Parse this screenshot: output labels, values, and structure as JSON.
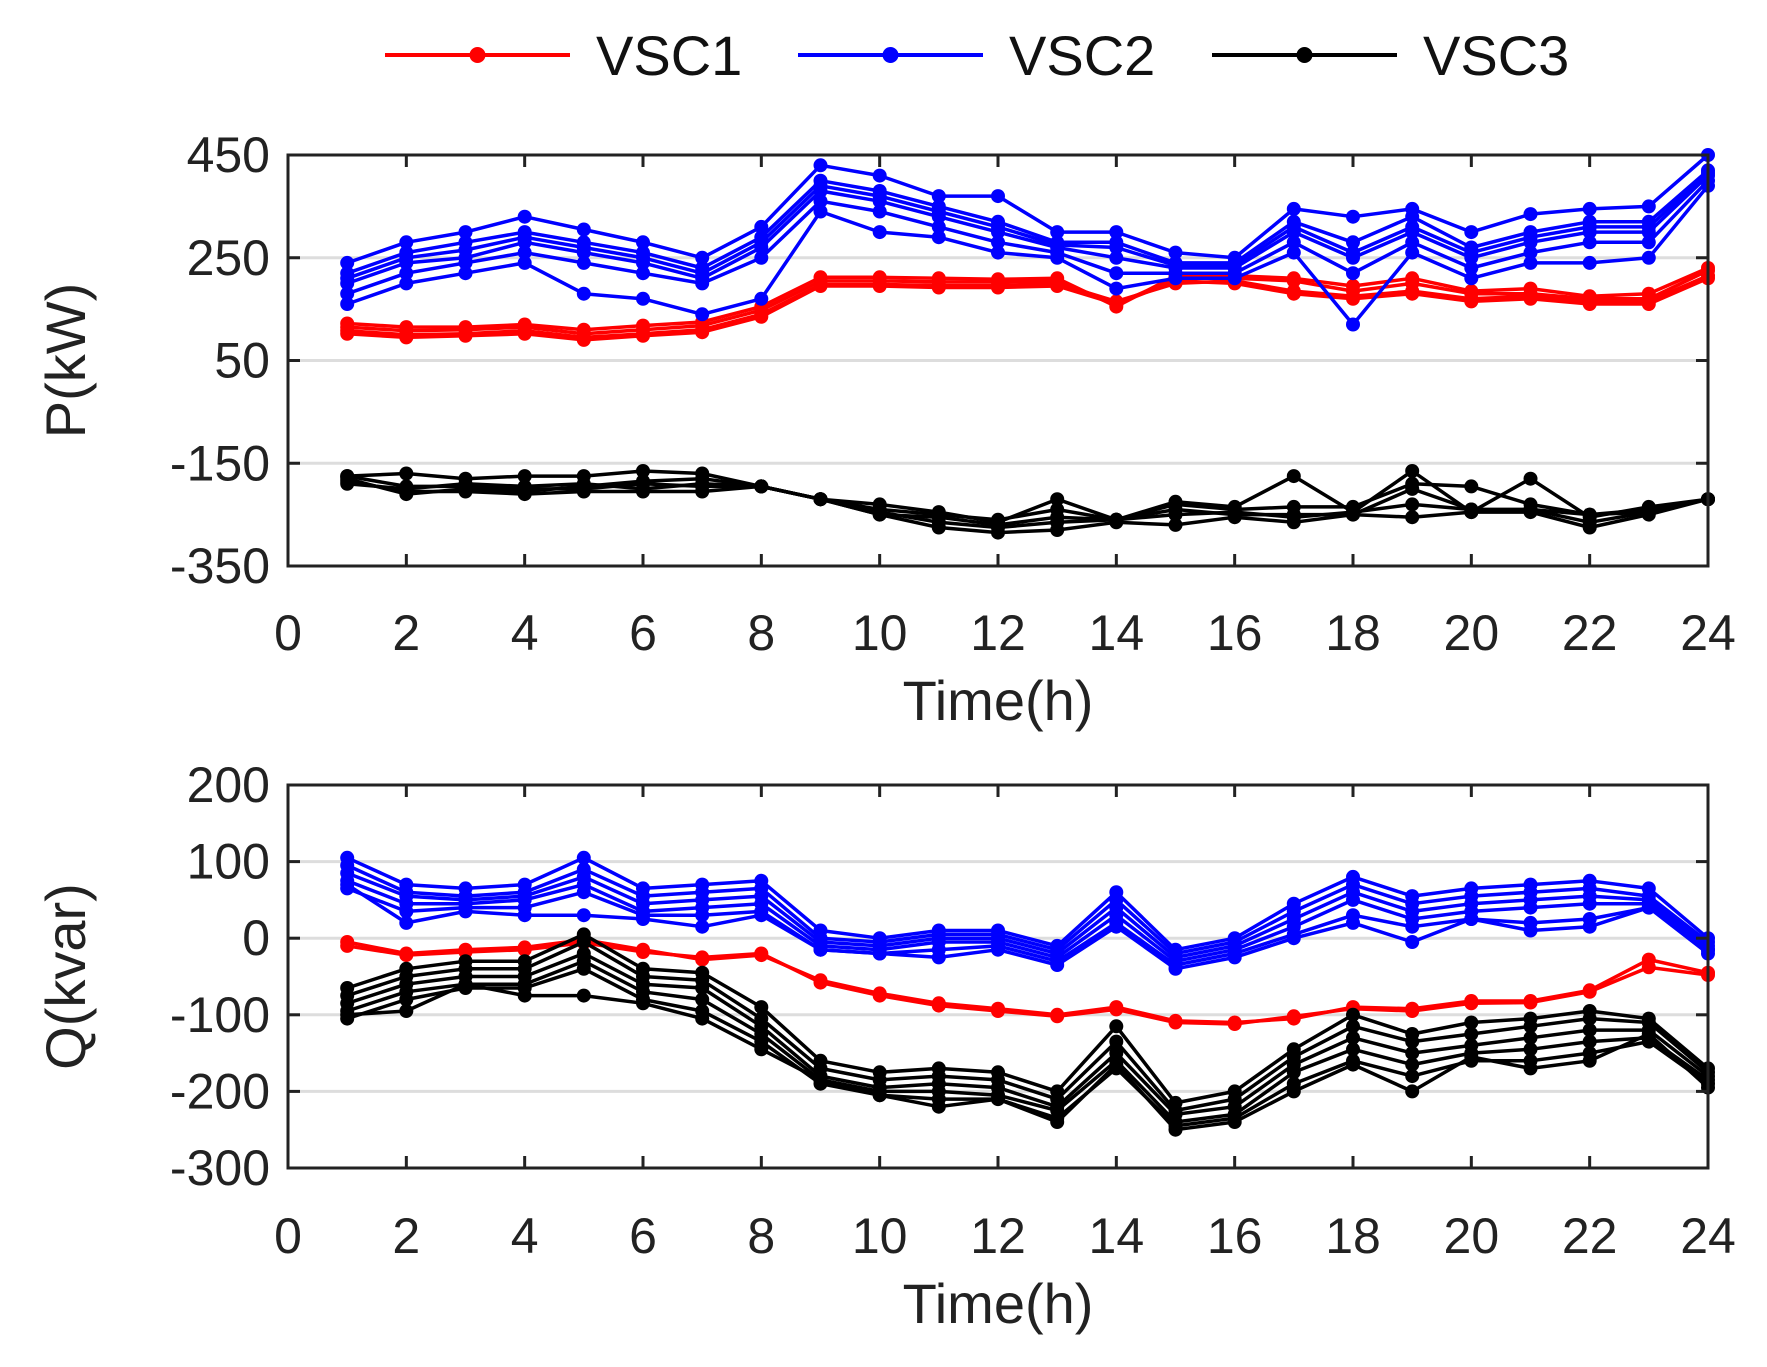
{
  "legend": [
    {
      "name": "VSC1",
      "color": "#ff0000"
    },
    {
      "name": "VSC2",
      "color": "#0000ff"
    },
    {
      "name": "VSC3",
      "color": "#000000"
    }
  ],
  "chart_data": [
    {
      "type": "line",
      "ylabel": "P(kW)",
      "xlabel": "Time(h)",
      "xlim": [
        0,
        24
      ],
      "ylim": [
        -350,
        450
      ],
      "xticks": [
        0,
        2,
        4,
        6,
        8,
        10,
        12,
        14,
        16,
        18,
        20,
        22,
        24
      ],
      "yticks": [
        -350,
        -150,
        50,
        250,
        450
      ],
      "grid": true,
      "x": [
        1,
        2,
        3,
        4,
        5,
        6,
        7,
        8,
        9,
        10,
        11,
        12,
        13,
        14,
        15,
        16,
        17,
        18,
        19,
        20,
        21,
        22,
        23,
        24
      ],
      "series": [
        {
          "name": "VSC1",
          "color": "#ff0000",
          "values": [
            115,
            108,
            110,
            115,
            102,
            110,
            118,
            148,
            205,
            205,
            203,
            203,
            205,
            160,
            210,
            210,
            205,
            185,
            200,
            180,
            180,
            170,
            170,
            225
          ]
        },
        {
          "name": "VSC1",
          "color": "#ff0000",
          "values": [
            108,
            100,
            102,
            108,
            95,
            102,
            110,
            140,
            198,
            198,
            196,
            196,
            200,
            165,
            200,
            205,
            185,
            175,
            185,
            170,
            175,
            165,
            165,
            215
          ]
        },
        {
          "name": "VSC1",
          "color": "#ff0000",
          "values": [
            122,
            115,
            115,
            120,
            110,
            118,
            125,
            155,
            212,
            212,
            210,
            208,
            210,
            155,
            215,
            215,
            210,
            195,
            210,
            185,
            190,
            175,
            180,
            230
          ]
        },
        {
          "name": "VSC1",
          "color": "#ff0000",
          "values": [
            102,
            95,
            98,
            102,
            90,
            98,
            105,
            135,
            195,
            195,
            192,
            192,
            195,
            160,
            205,
            200,
            180,
            170,
            180,
            165,
            170,
            160,
            160,
            210
          ]
        },
        {
          "name": "VSC2",
          "color": "#0000ff",
          "values": [
            240,
            280,
            300,
            330,
            305,
            280,
            250,
            310,
            430,
            410,
            370,
            370,
            300,
            300,
            260,
            250,
            345,
            330,
            345,
            300,
            335,
            345,
            350,
            450
          ]
        },
        {
          "name": "VSC2",
          "color": "#0000ff",
          "values": [
            220,
            260,
            280,
            300,
            280,
            260,
            230,
            290,
            400,
            380,
            350,
            320,
            280,
            280,
            240,
            240,
            320,
            280,
            330,
            270,
            300,
            320,
            320,
            420
          ]
        },
        {
          "name": "VSC2",
          "color": "#0000ff",
          "values": [
            200,
            240,
            250,
            280,
            260,
            240,
            210,
            270,
            380,
            360,
            330,
            300,
            270,
            250,
            230,
            230,
            300,
            250,
            300,
            250,
            280,
            300,
            300,
            410
          ]
        },
        {
          "name": "VSC2",
          "color": "#0000ff",
          "values": [
            180,
            220,
            240,
            260,
            240,
            220,
            200,
            250,
            360,
            340,
            310,
            280,
            260,
            220,
            220,
            220,
            280,
            220,
            280,
            230,
            260,
            280,
            280,
            400
          ]
        },
        {
          "name": "VSC2",
          "color": "#0000ff",
          "values": [
            160,
            200,
            220,
            240,
            180,
            170,
            140,
            170,
            340,
            300,
            290,
            260,
            250,
            190,
            210,
            210,
            260,
            120,
            260,
            210,
            240,
            240,
            250,
            390
          ]
        },
        {
          "name": "VSC2",
          "color": "#0000ff",
          "values": [
            210,
            250,
            265,
            290,
            270,
            250,
            220,
            280,
            390,
            370,
            340,
            310,
            275,
            270,
            235,
            235,
            310,
            260,
            310,
            260,
            290,
            310,
            310,
            415
          ]
        },
        {
          "name": "VSC3",
          "color": "#000000",
          "values": [
            -175,
            -170,
            -180,
            -175,
            -175,
            -165,
            -170,
            -195,
            -220,
            -230,
            -245,
            -265,
            -220,
            -260,
            -225,
            -235,
            -175,
            -245,
            -165,
            -245,
            -180,
            -255,
            -235,
            -220
          ]
        },
        {
          "name": "VSC3",
          "color": "#000000",
          "values": [
            -180,
            -210,
            -200,
            -205,
            -195,
            -185,
            -180,
            -195,
            -220,
            -240,
            -250,
            -260,
            -240,
            -260,
            -230,
            -240,
            -235,
            -235,
            -190,
            -195,
            -230,
            -250,
            -240,
            -220
          ]
        },
        {
          "name": "VSC3",
          "color": "#000000",
          "values": [
            -190,
            -200,
            -190,
            -195,
            -190,
            -200,
            -190,
            -195,
            -220,
            -250,
            -255,
            -270,
            -255,
            -260,
            -240,
            -250,
            -250,
            -250,
            -200,
            -240,
            -240,
            -250,
            -245,
            -220
          ]
        },
        {
          "name": "VSC3",
          "color": "#000000",
          "values": [
            -185,
            -205,
            -205,
            -210,
            -205,
            -205,
            -205,
            -195,
            -220,
            -250,
            -275,
            -285,
            -280,
            -265,
            -270,
            -255,
            -265,
            -250,
            -255,
            -245,
            -245,
            -275,
            -250,
            -220
          ]
        },
        {
          "name": "VSC3",
          "color": "#000000",
          "values": [
            -175,
            -195,
            -195,
            -200,
            -200,
            -190,
            -195,
            -195,
            -220,
            -245,
            -265,
            -275,
            -265,
            -260,
            -250,
            -245,
            -255,
            -245,
            -230,
            -240,
            -240,
            -265,
            -245,
            -220
          ]
        }
      ]
    },
    {
      "type": "line",
      "ylabel": "Q(kvar)",
      "xlabel": "Time(h)",
      "xlim": [
        0,
        24
      ],
      "ylim": [
        -300,
        200
      ],
      "xticks": [
        0,
        2,
        4,
        6,
        8,
        10,
        12,
        14,
        16,
        18,
        20,
        22,
        24
      ],
      "yticks": [
        -300,
        -200,
        -100,
        0,
        100,
        200
      ],
      "grid": true,
      "x": [
        1,
        2,
        3,
        4,
        5,
        6,
        7,
        8,
        9,
        10,
        11,
        12,
        13,
        14,
        15,
        16,
        17,
        18,
        19,
        20,
        21,
        22,
        23,
        24
      ],
      "series": [
        {
          "name": "VSC1",
          "color": "#ff0000",
          "values": [
            -5,
            -20,
            -15,
            -12,
            -2,
            -15,
            -28,
            -22,
            -55,
            -72,
            -85,
            -92,
            -100,
            -90,
            -108,
            -110,
            -105,
            -90,
            -92,
            -82,
            -82,
            -68,
            -28,
            -45
          ]
        },
        {
          "name": "VSC1",
          "color": "#ff0000",
          "values": [
            -10,
            -22,
            -18,
            -15,
            -6,
            -18,
            -25,
            -20,
            -58,
            -75,
            -88,
            -95,
            -102,
            -93,
            -110,
            -112,
            -102,
            -92,
            -95,
            -85,
            -84,
            -70,
            -38,
            -48
          ]
        },
        {
          "name": "VSC2",
          "color": "#0000ff",
          "values": [
            105,
            70,
            65,
            70,
            105,
            65,
            70,
            75,
            10,
            0,
            10,
            10,
            -10,
            60,
            -15,
            0,
            45,
            80,
            55,
            65,
            70,
            75,
            65,
            0
          ]
        },
        {
          "name": "VSC2",
          "color": "#0000ff",
          "values": [
            95,
            60,
            55,
            60,
            90,
            55,
            60,
            65,
            0,
            -5,
            5,
            5,
            -15,
            50,
            -20,
            -5,
            35,
            70,
            45,
            55,
            60,
            65,
            55,
            -5
          ]
        },
        {
          "name": "VSC2",
          "color": "#0000ff",
          "values": [
            85,
            55,
            50,
            55,
            80,
            45,
            50,
            55,
            -5,
            -10,
            0,
            0,
            -20,
            40,
            -25,
            -10,
            25,
            60,
            35,
            45,
            50,
            55,
            50,
            -10
          ]
        },
        {
          "name": "VSC2",
          "color": "#0000ff",
          "values": [
            75,
            45,
            45,
            50,
            70,
            35,
            40,
            45,
            -10,
            -15,
            -5,
            -5,
            -25,
            30,
            -30,
            -15,
            15,
            50,
            25,
            35,
            40,
            45,
            45,
            -15
          ]
        },
        {
          "name": "VSC2",
          "color": "#0000ff",
          "values": [
            65,
            35,
            40,
            40,
            60,
            30,
            30,
            35,
            -15,
            -20,
            -15,
            -10,
            -30,
            20,
            -35,
            -20,
            5,
            30,
            15,
            25,
            20,
            25,
            40,
            -20
          ]
        },
        {
          "name": "VSC2",
          "color": "#0000ff",
          "values": [
            70,
            20,
            35,
            30,
            30,
            25,
            15,
            30,
            -15,
            -20,
            -25,
            -15,
            -35,
            15,
            -40,
            -25,
            0,
            20,
            -5,
            25,
            10,
            15,
            40,
            -15
          ]
        },
        {
          "name": "VSC3",
          "color": "#000000",
          "values": [
            -65,
            -40,
            -30,
            -30,
            5,
            -40,
            -45,
            -90,
            -160,
            -175,
            -170,
            -175,
            -200,
            -115,
            -215,
            -200,
            -145,
            -100,
            -125,
            -110,
            -105,
            -95,
            -105,
            -170
          ]
        },
        {
          "name": "VSC3",
          "color": "#000000",
          "values": [
            -75,
            -50,
            -40,
            -40,
            -5,
            -50,
            -55,
            -105,
            -170,
            -185,
            -180,
            -185,
            -210,
            -135,
            -225,
            -210,
            -155,
            -115,
            -135,
            -125,
            -115,
            -105,
            -110,
            -175
          ]
        },
        {
          "name": "VSC3",
          "color": "#000000",
          "values": [
            -85,
            -60,
            -50,
            -50,
            -20,
            -60,
            -65,
            -115,
            -180,
            -195,
            -190,
            -195,
            -220,
            -150,
            -230,
            -220,
            -165,
            -130,
            -150,
            -140,
            -130,
            -120,
            -120,
            -180
          ]
        },
        {
          "name": "VSC3",
          "color": "#000000",
          "values": [
            -95,
            -70,
            -60,
            -60,
            -30,
            -70,
            -80,
            -125,
            -185,
            -200,
            -200,
            -205,
            -225,
            -160,
            -240,
            -230,
            -175,
            -145,
            -165,
            -150,
            -145,
            -135,
            -130,
            -185
          ]
        },
        {
          "name": "VSC3",
          "color": "#000000",
          "values": [
            -105,
            -80,
            -65,
            -65,
            -40,
            -80,
            -95,
            -135,
            -190,
            -205,
            -210,
            -210,
            -235,
            -170,
            -245,
            -235,
            -190,
            -160,
            -180,
            -160,
            -160,
            -150,
            -135,
            -190
          ]
        },
        {
          "name": "VSC3",
          "color": "#000000",
          "values": [
            -100,
            -95,
            -60,
            -75,
            -75,
            -85,
            -105,
            -145,
            -185,
            -205,
            -220,
            -210,
            -240,
            -165,
            -250,
            -240,
            -200,
            -165,
            -200,
            -155,
            -170,
            -160,
            -125,
            -195
          ]
        }
      ]
    }
  ]
}
